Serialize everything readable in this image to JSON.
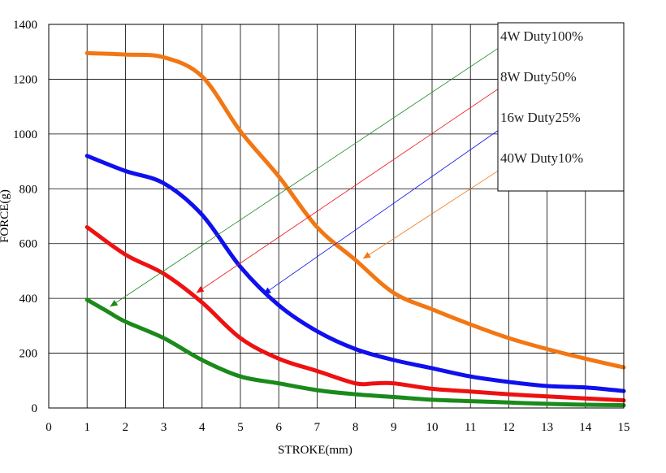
{
  "chart_data": {
    "type": "line",
    "title": "",
    "xlabel": "STROKE(mm)",
    "ylabel": "FORCE(g)",
    "xlim": [
      0,
      15
    ],
    "ylim": [
      0,
      1400
    ],
    "xticks": [
      "0",
      "1",
      "2",
      "3",
      "4",
      "5",
      "6",
      "7",
      "8",
      "9",
      "10",
      "11",
      "12",
      "13",
      "14",
      "15"
    ],
    "yticks": [
      "0",
      "200",
      "400",
      "600",
      "800",
      "1000",
      "1200",
      "1400"
    ],
    "grid": true,
    "legend_position": "top-right",
    "series": [
      {
        "name": "4W  Duty100%",
        "color": "#1a8a1a",
        "x": [
          1,
          1.5,
          2,
          3,
          4,
          5,
          6,
          7,
          8,
          9,
          10,
          11,
          12,
          13,
          14,
          15
        ],
        "y": [
          395,
          355,
          315,
          255,
          175,
          115,
          90,
          65,
          50,
          40,
          30,
          25,
          20,
          15,
          12,
          10
        ]
      },
      {
        "name": "8W  Duty50%",
        "color": "#ee1111",
        "x": [
          1,
          2,
          3,
          4,
          5,
          6,
          7,
          8,
          8.5,
          9,
          10,
          11,
          12,
          13,
          14,
          15
        ],
        "y": [
          660,
          560,
          490,
          385,
          255,
          180,
          135,
          90,
          90,
          90,
          70,
          60,
          50,
          42,
          35,
          28
        ]
      },
      {
        "name": "16w Duty25%",
        "color": "#1010ee",
        "x": [
          1,
          2,
          3,
          4,
          5,
          6,
          7,
          8,
          9,
          10,
          11,
          12,
          13,
          14,
          15
        ],
        "y": [
          920,
          865,
          820,
          705,
          515,
          375,
          280,
          215,
          175,
          145,
          115,
          95,
          80,
          75,
          62
        ]
      },
      {
        "name": "40W   Duty10%",
        "color": "#f27714",
        "x": [
          1,
          2,
          3,
          4,
          5,
          6,
          7,
          8,
          9,
          10,
          11,
          12,
          13,
          14,
          15
        ],
        "y": [
          1295,
          1290,
          1280,
          1210,
          1010,
          845,
          660,
          540,
          420,
          360,
          305,
          255,
          215,
          180,
          148
        ]
      }
    ],
    "annotations": [
      {
        "series": 0,
        "from": [
          12.1,
          1348
        ],
        "to": [
          1.6,
          370
        ]
      },
      {
        "series": 1,
        "from": [
          12.1,
          1200
        ],
        "to": [
          3.85,
          420
        ]
      },
      {
        "series": 2,
        "from": [
          12.1,
          1050
        ],
        "to": [
          5.6,
          415
        ]
      },
      {
        "series": 3,
        "from": [
          12.1,
          900
        ],
        "to": [
          8.2,
          545
        ]
      }
    ]
  }
}
